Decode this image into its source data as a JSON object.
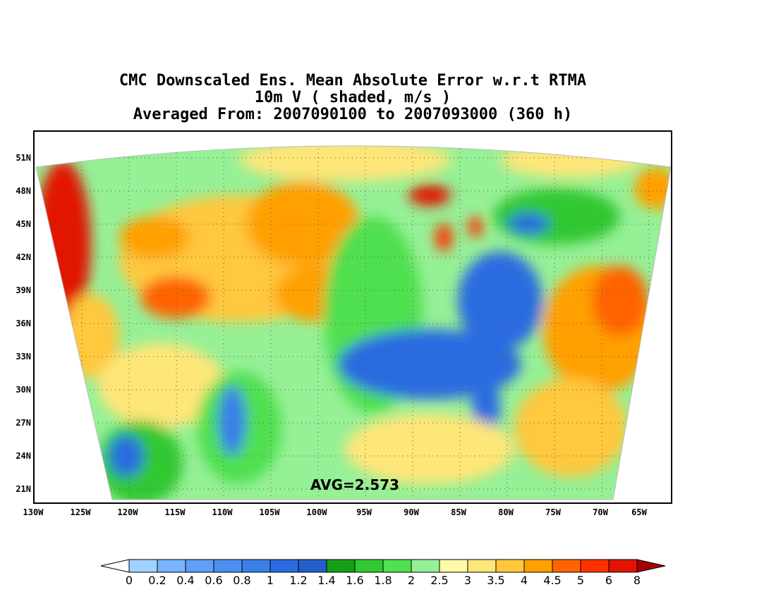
{
  "title": {
    "line1": "CMC Downscaled Ens. Mean Absolute Error w.r.t RTMA",
    "line2": "10m V ( shaded, m/s )",
    "line3": "Averaged From: 2007090100 to 2007093000 (360 h)"
  },
  "axes": {
    "lat_labels": [
      "51N",
      "48N",
      "45N",
      "42N",
      "39N",
      "36N",
      "33N",
      "30N",
      "27N",
      "24N",
      "21N"
    ],
    "lon_labels": [
      "130W",
      "125W",
      "120W",
      "115W",
      "110W",
      "105W",
      "100W",
      "95W",
      "90W",
      "85W",
      "80W",
      "75W",
      "70W",
      "65W"
    ]
  },
  "avg_label": "AVG=2.573",
  "colorbar": {
    "labels": [
      "0",
      "0.2",
      "0.4",
      "0.6",
      "0.8",
      "1",
      "1.2",
      "1.4",
      "1.6",
      "1.8",
      "2",
      "2.5",
      "3",
      "3.5",
      "4",
      "4.5",
      "5",
      "6",
      "8"
    ],
    "colors": [
      "#9fd3ff",
      "#78b4ff",
      "#5ea0f5",
      "#4b8ff0",
      "#3a7fe8",
      "#2a6ce0",
      "#2060c8",
      "#14a014",
      "#32c832",
      "#50e050",
      "#96f096",
      "#fffaaa",
      "#ffe678",
      "#ffc83c",
      "#ffa000",
      "#ff6400",
      "#ff3200",
      "#e11400",
      "#a50000"
    ]
  },
  "palette": {
    "background": "#ffffff",
    "frame": "#000000"
  }
}
